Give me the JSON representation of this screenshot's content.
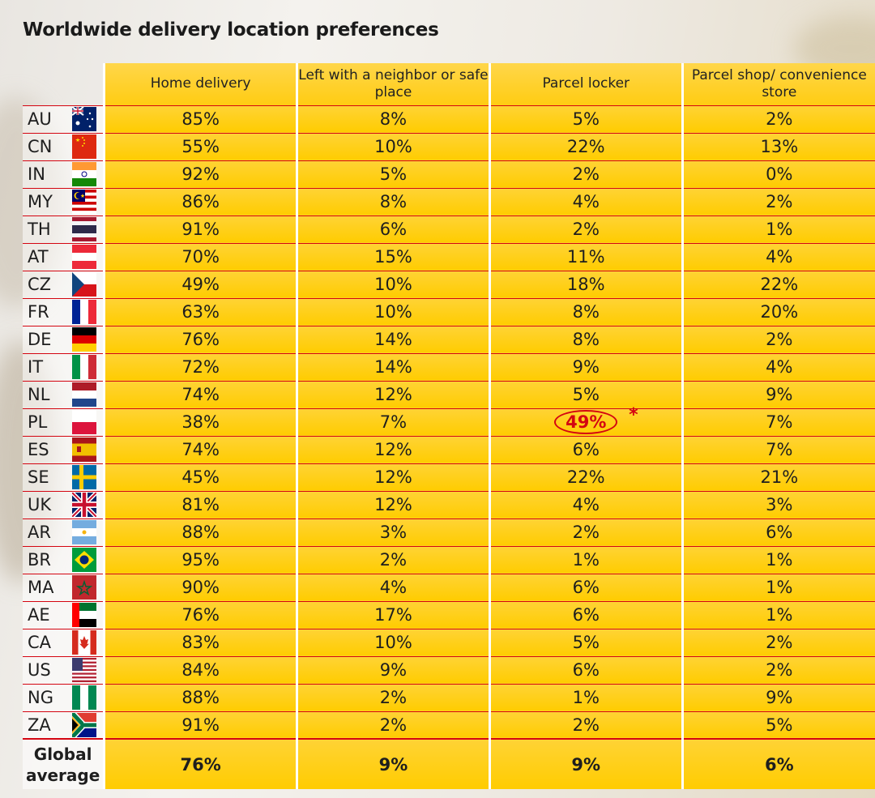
{
  "chart_data": {
    "type": "table",
    "title": "Worldwide delivery location preferences",
    "columns": [
      "Home delivery",
      "Left with a neighbor or safe place",
      "Parcel locker",
      "Parcel shop/ convenience store"
    ],
    "rows": [
      {
        "code": "AU",
        "values": [
          "85%",
          "8%",
          "5%",
          "2%"
        ]
      },
      {
        "code": "CN",
        "values": [
          "55%",
          "10%",
          "22%",
          "13%"
        ]
      },
      {
        "code": "IN",
        "values": [
          "92%",
          "5%",
          "2%",
          "0%"
        ]
      },
      {
        "code": "MY",
        "values": [
          "86%",
          "8%",
          "4%",
          "2%"
        ]
      },
      {
        "code": "TH",
        "values": [
          "91%",
          "6%",
          "2%",
          "1%"
        ]
      },
      {
        "code": "AT",
        "values": [
          "70%",
          "15%",
          "11%",
          "4%"
        ]
      },
      {
        "code": "CZ",
        "values": [
          "49%",
          "10%",
          "18%",
          "22%"
        ]
      },
      {
        "code": "FR",
        "values": [
          "63%",
          "10%",
          "8%",
          "20%"
        ]
      },
      {
        "code": "DE",
        "values": [
          "76%",
          "14%",
          "8%",
          "2%"
        ]
      },
      {
        "code": "IT",
        "values": [
          "72%",
          "14%",
          "9%",
          "4%"
        ]
      },
      {
        "code": "NL",
        "values": [
          "74%",
          "12%",
          "5%",
          "9%"
        ]
      },
      {
        "code": "PL",
        "values": [
          "38%",
          "7%",
          "49%",
          "7%"
        ]
      },
      {
        "code": "ES",
        "values": [
          "74%",
          "12%",
          "6%",
          "7%"
        ]
      },
      {
        "code": "SE",
        "values": [
          "45%",
          "12%",
          "22%",
          "21%"
        ]
      },
      {
        "code": "UK",
        "values": [
          "81%",
          "12%",
          "4%",
          "3%"
        ]
      },
      {
        "code": "AR",
        "values": [
          "88%",
          "3%",
          "2%",
          "6%"
        ]
      },
      {
        "code": "BR",
        "values": [
          "95%",
          "2%",
          "1%",
          "1%"
        ]
      },
      {
        "code": "MA",
        "values": [
          "90%",
          "4%",
          "6%",
          "1%"
        ]
      },
      {
        "code": "AE",
        "values": [
          "76%",
          "17%",
          "6%",
          "1%"
        ]
      },
      {
        "code": "CA",
        "values": [
          "83%",
          "10%",
          "5%",
          "2%"
        ]
      },
      {
        "code": "US",
        "values": [
          "84%",
          "9%",
          "6%",
          "2%"
        ]
      },
      {
        "code": "NG",
        "values": [
          "88%",
          "2%",
          "1%",
          "9%"
        ]
      },
      {
        "code": "ZA",
        "values": [
          "91%",
          "2%",
          "2%",
          "5%"
        ]
      }
    ],
    "average": {
      "label_line1": "Global",
      "label_line2": "average",
      "values": [
        "76%",
        "9%",
        "9%",
        "6%"
      ]
    },
    "highlight": {
      "row": "PL",
      "column": "Parcel locker",
      "value": "49%",
      "mark": "*"
    }
  },
  "colors": {
    "accent_red": "#d40511",
    "cell_yellow": "#ffcc00"
  }
}
